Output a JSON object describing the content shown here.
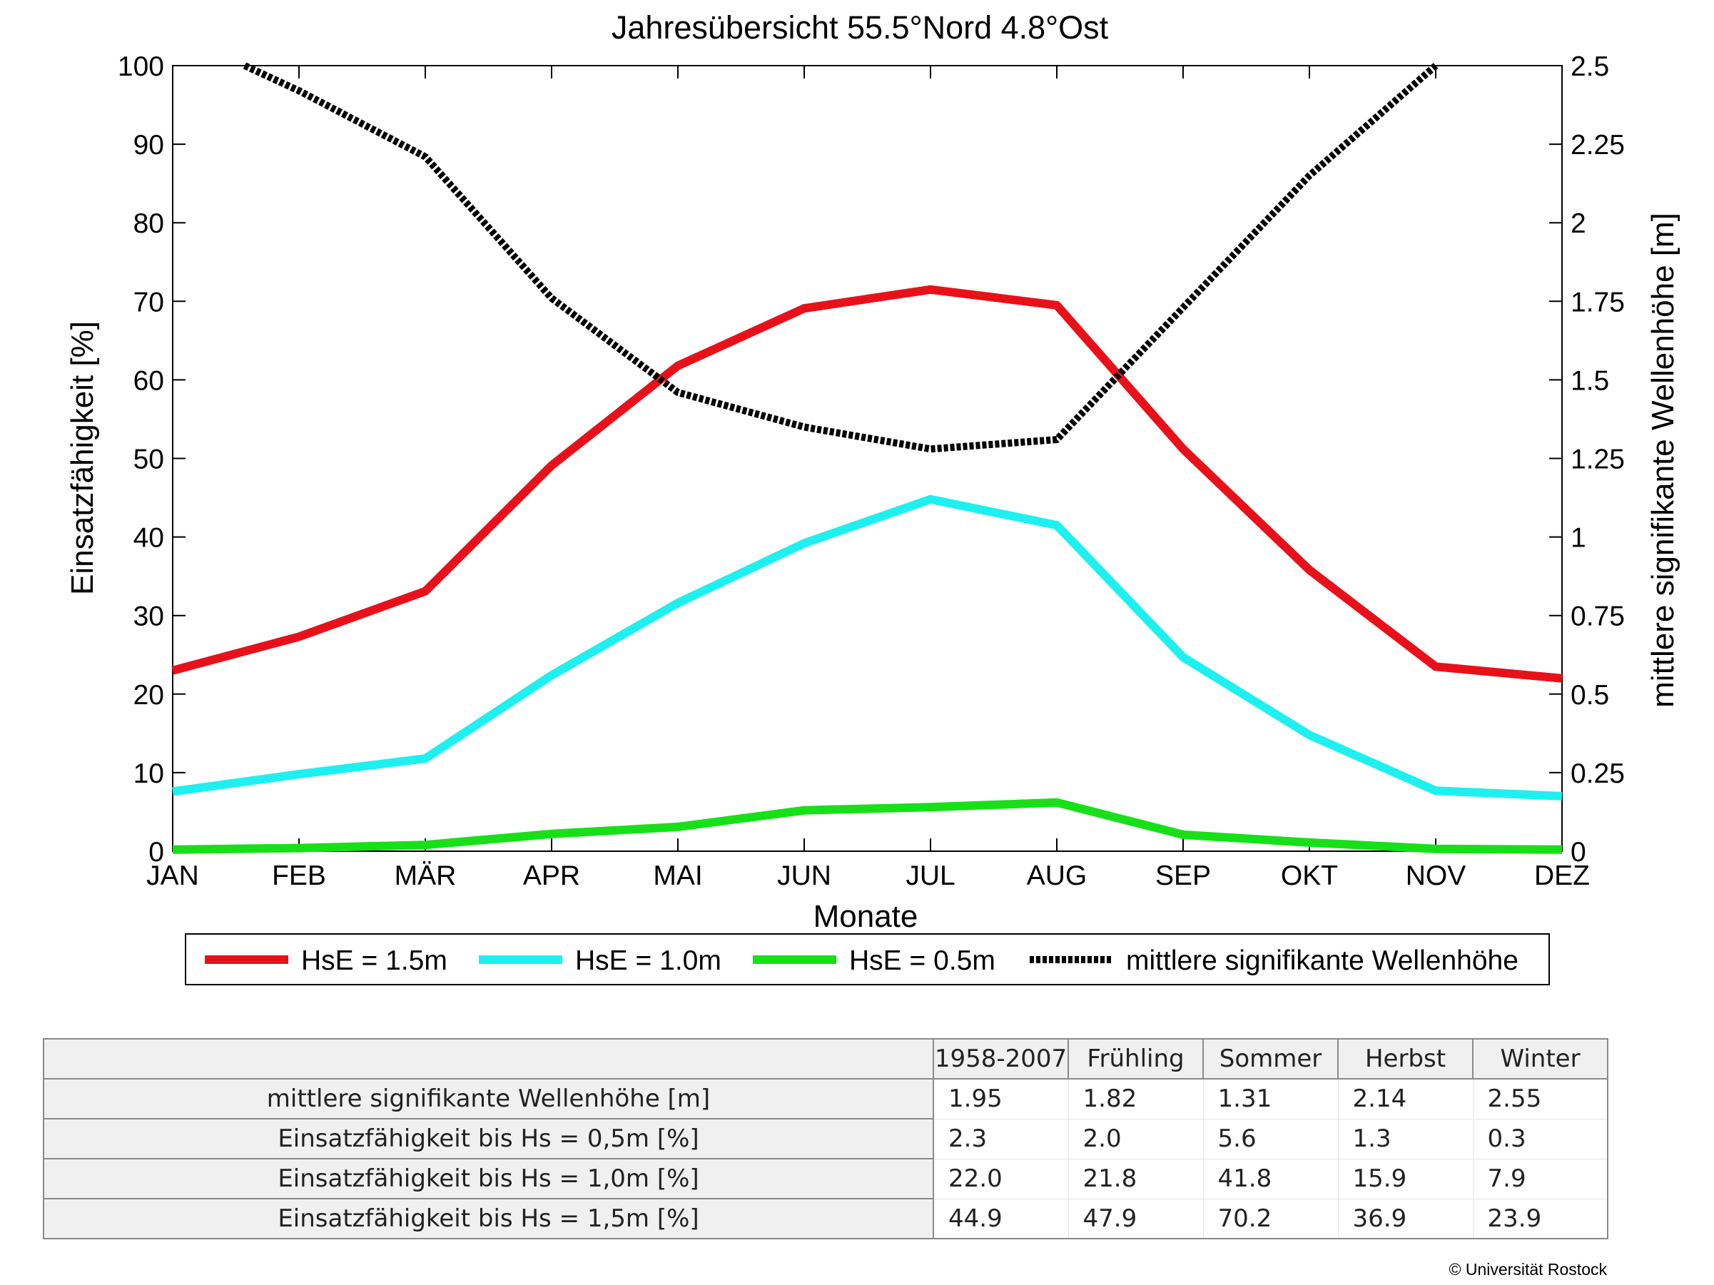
{
  "chart_data": {
    "type": "line",
    "title": "Jahresübersicht  55.5°Nord  4.8°Ost",
    "xlabel": "Monate",
    "ylabel": "Einsatzfähigkeit [%]",
    "y2label": "mittlere signifikante Wellenhöhe [m]",
    "categories": [
      "JAN",
      "FEB",
      "MÄR",
      "APR",
      "MAI",
      "JUN",
      "JUL",
      "AUG",
      "SEP",
      "OKT",
      "NOV",
      "DEZ"
    ],
    "ylim": [
      0,
      100
    ],
    "y2lim": [
      0,
      2.5
    ],
    "yticks": [
      "0",
      "10",
      "20",
      "30",
      "40",
      "50",
      "60",
      "70",
      "80",
      "90",
      "100"
    ],
    "y2ticks": [
      "0",
      "0.25",
      "0.5",
      "0.75",
      "1",
      "1.25",
      "1.5",
      "1.75",
      "2",
      "2.25",
      "2.5"
    ],
    "legend_position": "bottom",
    "series": [
      {
        "name": "HsE = 1.5m",
        "axis": "left",
        "color": "#e8111a",
        "style": "solid",
        "values": [
          23,
          27.3,
          33.1,
          49.1,
          61.8,
          69.1,
          71.5,
          69.5,
          51.2,
          35.8,
          23.5,
          22
        ]
      },
      {
        "name": "HsE = 1.0m",
        "axis": "left",
        "color": "#1ef0f0",
        "style": "solid",
        "values": [
          7.6,
          9.8,
          11.8,
          22.4,
          31.6,
          39.2,
          44.8,
          41.5,
          24.7,
          14.8,
          7.7,
          7
        ]
      },
      {
        "name": "HsE = 0.5m",
        "axis": "left",
        "color": "#18e018",
        "style": "solid",
        "values": [
          0.2,
          0.4,
          0.8,
          2.2,
          3.1,
          5.2,
          5.6,
          6.2,
          2.1,
          1.1,
          0.3,
          0.2
        ]
      },
      {
        "name": "mittlere signifikante Wellenhöhe",
        "axis": "right",
        "color": "#000000",
        "style": "dotted",
        "values": [
          null,
          2.42,
          2.21,
          1.76,
          1.46,
          1.35,
          1.28,
          1.31,
          1.73,
          2.15,
          2.5,
          null
        ],
        "start": [
          0.57,
          2.5
        ]
      }
    ]
  },
  "stats_table": {
    "columns": [
      "1958-2007",
      "Frühling",
      "Sommer",
      "Herbst",
      "Winter"
    ],
    "rows": [
      {
        "label": "mittlere signifikante Wellenhöhe [m]",
        "values": [
          "1.95",
          "1.82",
          "1.31",
          "2.14",
          "2.55"
        ]
      },
      {
        "label": "Einsatzfähigkeit bis Hs = 0,5m [%]",
        "values": [
          "2.3",
          "2.0",
          "5.6",
          "1.3",
          "0.3"
        ]
      },
      {
        "label": "Einsatzfähigkeit bis Hs = 1,0m [%]",
        "values": [
          "22.0",
          "21.8",
          "41.8",
          "15.9",
          "7.9"
        ]
      },
      {
        "label": "Einsatzfähigkeit bis Hs = 1,5m [%]",
        "values": [
          "44.9",
          "47.9",
          "70.2",
          "36.9",
          "23.9"
        ]
      }
    ]
  },
  "copyright": "© Universität Rostock"
}
